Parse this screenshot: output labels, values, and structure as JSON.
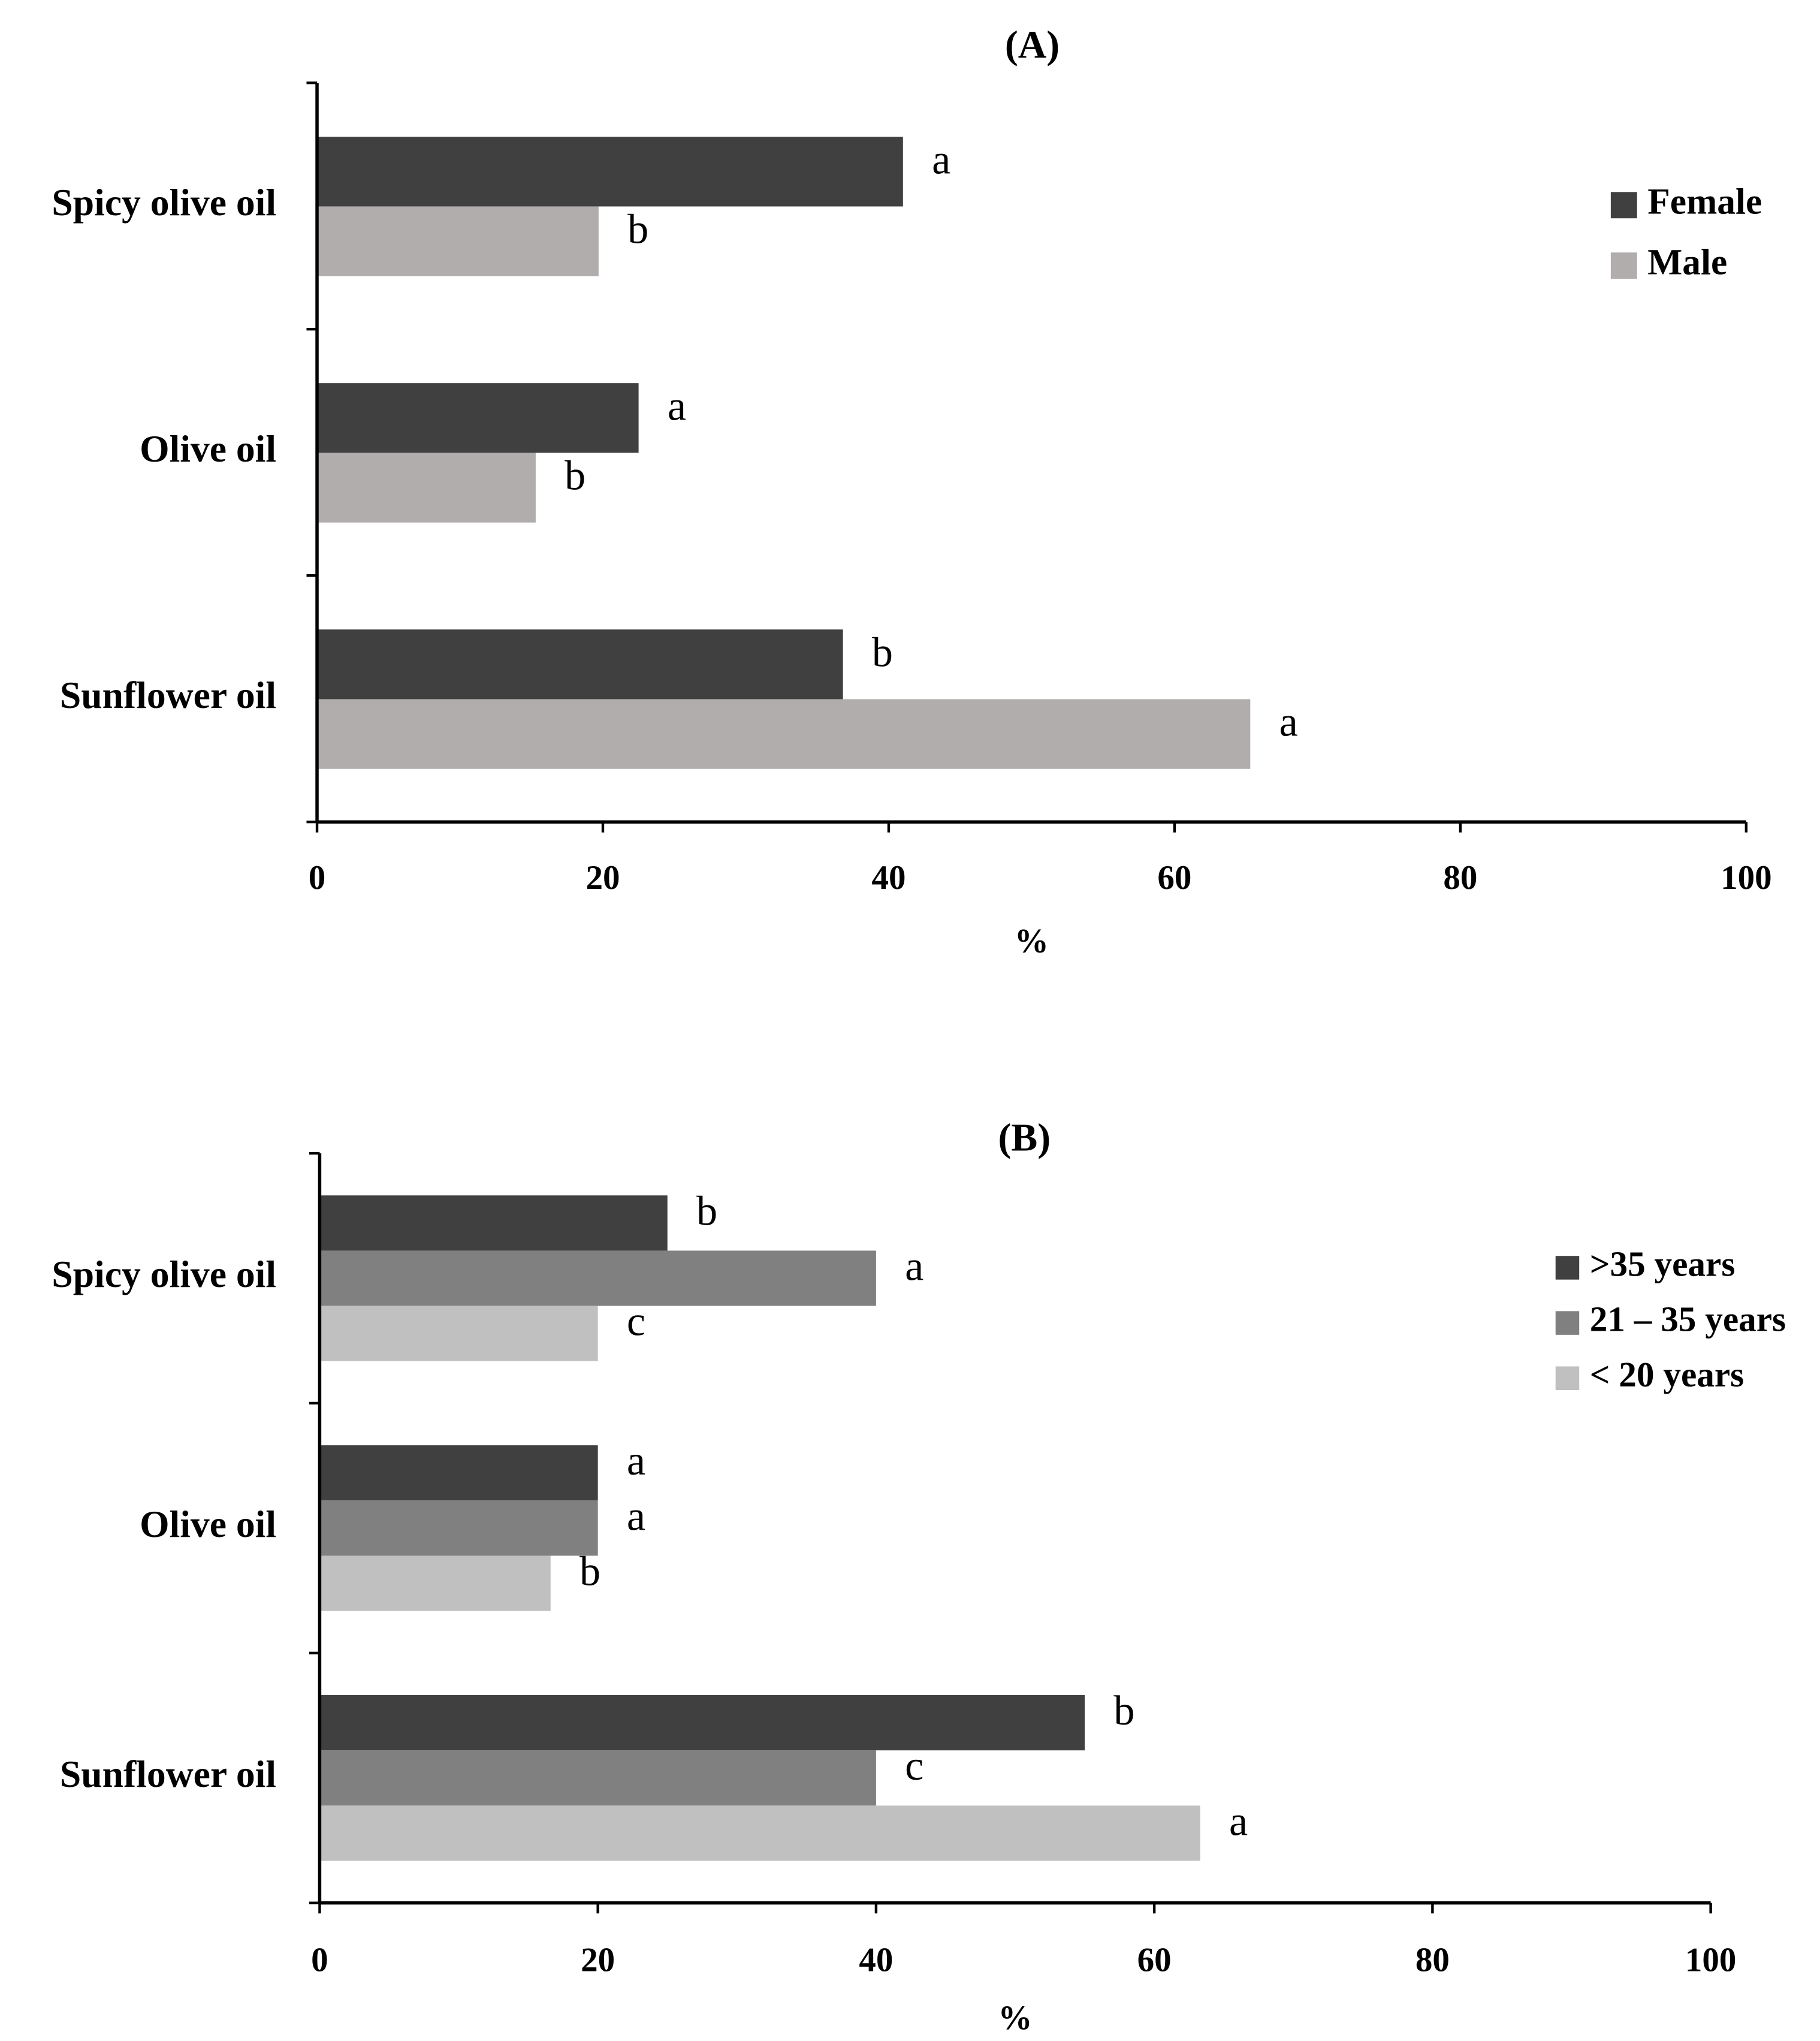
{
  "chart_data": [
    {
      "type": "hbar",
      "title": "(A)",
      "xlabel": "%",
      "categories": [
        "Spicy olive oil",
        "Olive oil",
        "Sunflower oil"
      ],
      "series": [
        {
          "name": "Female",
          "color": "#404040",
          "values": [
            41,
            22.5,
            36.8
          ],
          "letters": [
            "a",
            "a",
            "b"
          ]
        },
        {
          "name": "Male",
          "color": "#b0adac",
          "values": [
            19.7,
            15.3,
            65.3
          ],
          "letters": [
            "b",
            "b",
            "a"
          ]
        }
      ],
      "xlim": [
        0,
        100
      ],
      "xticks": [
        0,
        20,
        40,
        60,
        80,
        100
      ],
      "legend": "upper right"
    },
    {
      "type": "hbar",
      "title": "(B)",
      "xlabel": "%",
      "categories": [
        "Spicy olive oil",
        "Olive oil",
        "Sunflower oil"
      ],
      "series": [
        {
          "name": ">35 years",
          "color": "#404040",
          "values": [
            25,
            20,
            55
          ],
          "letters": [
            "b",
            "a",
            "b"
          ]
        },
        {
          "name": "21 – 35 years",
          "color": "#808080",
          "values": [
            40,
            20,
            40
          ],
          "letters": [
            "a",
            "a",
            "c"
          ]
        },
        {
          "name": "< 20 years",
          "color": "#c0c0c0",
          "values": [
            20,
            16.6,
            63.3
          ],
          "letters": [
            "c",
            "b",
            "a"
          ]
        }
      ],
      "xlim": [
        0,
        100
      ],
      "xticks": [
        0,
        20,
        40,
        60,
        80,
        100
      ],
      "legend": "upper right"
    }
  ]
}
